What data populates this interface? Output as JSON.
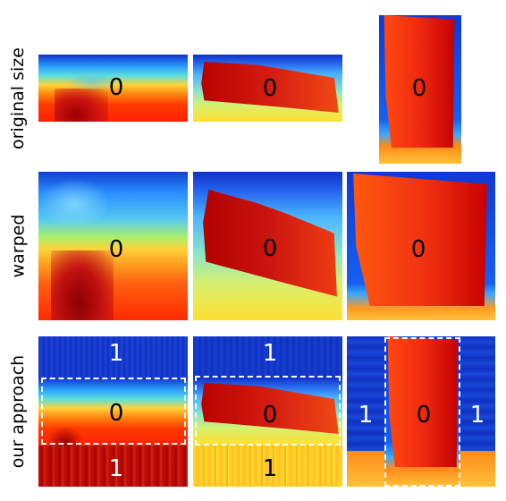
{
  "rows": {
    "original": "original size",
    "warped": "warped",
    "approach": "our approach"
  },
  "labels": {
    "zero": "0",
    "one": "1"
  }
}
